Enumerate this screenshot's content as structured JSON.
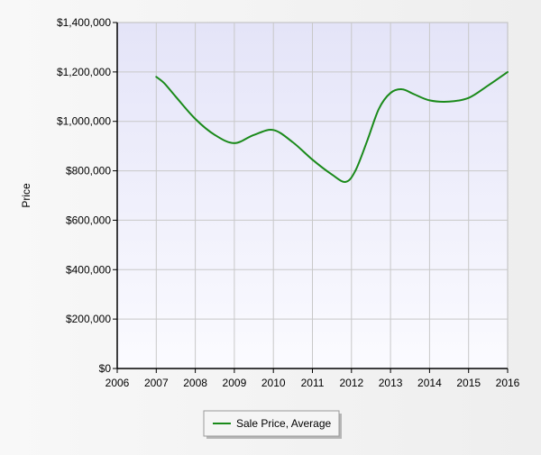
{
  "chart_data": {
    "type": "line",
    "title": "",
    "xlabel": "",
    "ylabel": "Price",
    "xlim": [
      2006,
      2016
    ],
    "ylim": [
      0,
      1400000
    ],
    "x_ticks": [
      "2006",
      "2007",
      "2008",
      "2009",
      "2010",
      "2011",
      "2012",
      "2013",
      "2014",
      "2015",
      "2016"
    ],
    "y_ticks": [
      "$0",
      "$200,000",
      "$400,000",
      "$600,000",
      "$800,000",
      "$1,000,000",
      "$1,200,000",
      "$1,400,000"
    ],
    "grid": true,
    "legend_position": "bottom",
    "series": [
      {
        "name": "Sale Price, Average",
        "color": "#1a8a1a",
        "x": [
          2007.0,
          2007.2,
          2007.5,
          2008.0,
          2008.5,
          2009.0,
          2009.5,
          2010.0,
          2010.5,
          2011.0,
          2011.5,
          2011.85,
          2012.1,
          2012.4,
          2012.7,
          2013.0,
          2013.3,
          2013.6,
          2014.0,
          2014.5,
          2015.0,
          2015.5,
          2016.0
        ],
        "y": [
          1180000,
          1155000,
          1100000,
          1010000,
          945000,
          912000,
          945000,
          965000,
          915000,
          845000,
          785000,
          755000,
          800000,
          920000,
          1050000,
          1115000,
          1130000,
          1110000,
          1085000,
          1080000,
          1095000,
          1145000,
          1200000
        ]
      }
    ]
  }
}
